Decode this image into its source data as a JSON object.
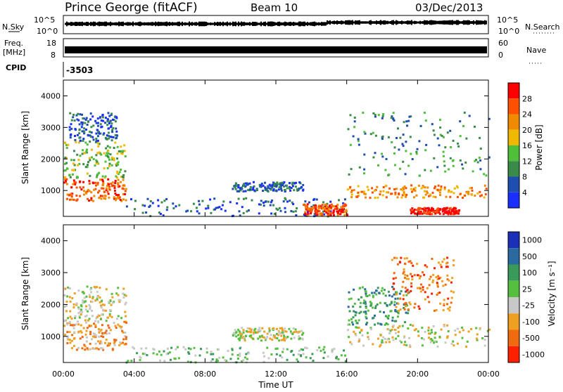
{
  "header": {
    "station": "Prince George (fitACF)",
    "beam": "Beam 10",
    "date": "03/Dec/2013"
  },
  "noise_panel": {
    "left_label": "N.Sky",
    "right_label": "N.Search",
    "left_ticks": [
      "10^5",
      "10^0"
    ],
    "right_ticks": [
      "10^5",
      "10^0"
    ]
  },
  "freq_panel": {
    "left_label_1": "Freq.",
    "left_label_2": "[MHz]",
    "right_label": "Nave",
    "left_ticks": [
      "18",
      "8"
    ],
    "right_ticks": [
      "60",
      "0"
    ]
  },
  "cpid": {
    "label": "CPID",
    "value": "-3503"
  },
  "power_panel": {
    "ylabel": "Slant Range [km]",
    "yticks": [
      "1000",
      "2000",
      "3000",
      "4000"
    ],
    "colorbar_label": "Power [dB]",
    "colorbar_ticks": [
      "4",
      "8",
      "12",
      "16",
      "20",
      "24",
      "28"
    ],
    "colors": [
      "#1a2fff",
      "#1e4fb0",
      "#3a8a4a",
      "#4fbf3a",
      "#f0b800",
      "#f08a00",
      "#ff5000",
      "#ff0000"
    ]
  },
  "velocity_panel": {
    "ylabel": "Slant Range [km]",
    "yticks": [
      "1000",
      "2000",
      "3000",
      "4000"
    ],
    "colorbar_label": "Velocity [m s⁻¹]",
    "colorbar_ticks": [
      "1000",
      "500",
      "100",
      "25",
      "-25",
      "-100",
      "-500",
      "-1000"
    ],
    "colors": [
      "#1b2fb8",
      "#2a6aa0",
      "#3a9a5a",
      "#55c040",
      "#c8c8c8",
      "#f0a020",
      "#f06a10",
      "#ff2000"
    ]
  },
  "xaxis": {
    "label": "Time UT",
    "ticks": [
      "00:00",
      "04:00",
      "08:00",
      "12:00",
      "16:00",
      "20:00",
      "00:00"
    ]
  },
  "chart_data": {
    "type": "heatmap",
    "title": "Prince George (fitACF)  Beam 10  03/Dec/2013",
    "xlabel": "Time UT",
    "ylabel": "Slant Range [km]",
    "xlim": [
      0,
      24
    ],
    "ylim": [
      180,
      4500
    ],
    "legend": "right colorbars",
    "power_regions": [
      {
        "t0": 0.0,
        "t1": 3.5,
        "r0": 700,
        "r1": 1400,
        "level": 6
      },
      {
        "t0": 0.0,
        "t1": 3.5,
        "r0": 1400,
        "r1": 2600,
        "level": 3
      },
      {
        "t0": 0.3,
        "t1": 3.0,
        "r0": 2600,
        "r1": 3500,
        "level": 1
      },
      {
        "t0": 3.5,
        "t1": 16.0,
        "r0": 200,
        "r1": 800,
        "level": 1
      },
      {
        "t0": 9.5,
        "t1": 13.5,
        "r0": 1000,
        "r1": 1300,
        "level": 1
      },
      {
        "t0": 13.5,
        "t1": 16.0,
        "r0": 250,
        "r1": 600,
        "level": 6
      },
      {
        "t0": 16.0,
        "t1": 24.0,
        "r0": 800,
        "r1": 1200,
        "level": 5
      },
      {
        "t0": 19.5,
        "t1": 22.3,
        "r0": 280,
        "r1": 480,
        "level": 7
      },
      {
        "t0": 16.0,
        "t1": 24.0,
        "r0": 1500,
        "r1": 3500,
        "level": 2
      }
    ],
    "velocity_regions": [
      {
        "t0": 0.0,
        "t1": 3.5,
        "r0": 600,
        "r1": 1500,
        "level": 5
      },
      {
        "t0": 0.0,
        "t1": 3.5,
        "r0": 1500,
        "r1": 2600,
        "level": 4
      },
      {
        "t0": 3.5,
        "t1": 16.0,
        "r0": 200,
        "r1": 700,
        "level": 3
      },
      {
        "t0": 9.5,
        "t1": 13.5,
        "r0": 900,
        "r1": 1300,
        "level": 4
      },
      {
        "t0": 16.0,
        "t1": 24.0,
        "r0": 700,
        "r1": 1400,
        "level": 4
      },
      {
        "t0": 16.0,
        "t1": 19.5,
        "r0": 1400,
        "r1": 2600,
        "level": 2
      },
      {
        "t0": 18.5,
        "t1": 22.0,
        "r0": 1800,
        "r1": 3500,
        "level": 6
      }
    ]
  }
}
